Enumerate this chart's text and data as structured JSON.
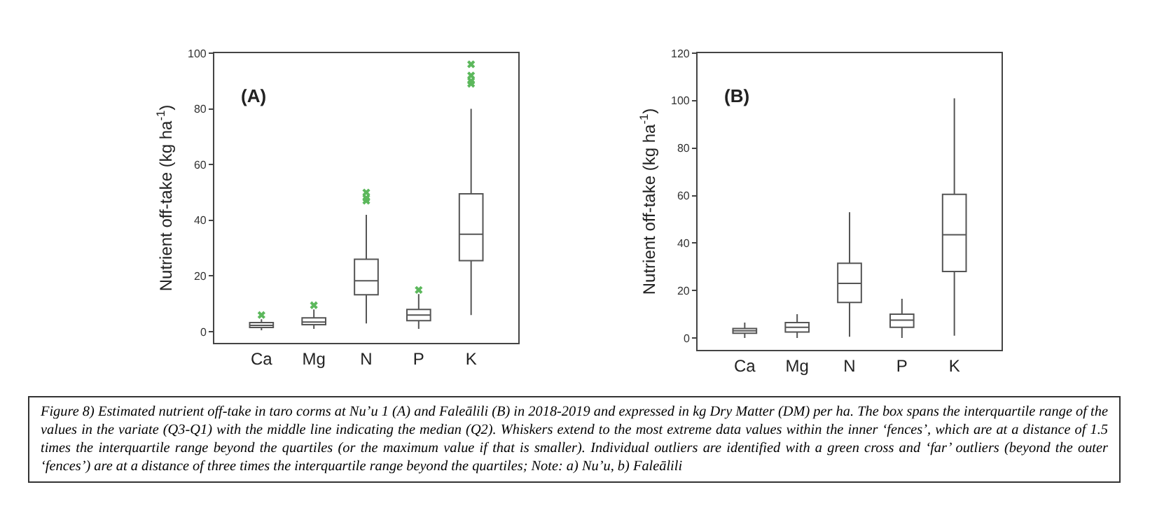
{
  "chart_data": [
    {
      "type": "box",
      "ylabel": "Nutrient off-take (kg ha$^{-1}$)",
      "annotations": [
        "(A)"
      ],
      "categories": [
        "Ca",
        "Mg",
        "N",
        "P",
        "K"
      ],
      "ylim": [
        -4,
        100
      ],
      "yticks": [
        0,
        20,
        40,
        60,
        80,
        100
      ],
      "grid": false,
      "color": "#555555",
      "marker": "cross",
      "series": [
        {
          "type": "scatter",
          "color": "#5cb85c",
          "x": [
            "Ca",
            "Mg",
            "N",
            "N",
            "N",
            "P",
            "K",
            "K",
            "K",
            "K"
          ],
          "values": [
            6,
            9.5,
            47,
            48,
            50,
            15,
            89,
            90,
            92,
            96
          ]
        }
      ],
      "boxes": [
        {
          "low": 0.5,
          "q1": 1.5,
          "median": 2.3,
          "q3": 3.3,
          "high": 4.5
        },
        {
          "low": 1,
          "q1": 2.5,
          "median": 3.5,
          "q3": 5,
          "high": 8
        },
        {
          "low": 3,
          "q1": 13.3,
          "median": 18.3,
          "q3": 26,
          "high": 42
        },
        {
          "low": 1,
          "q1": 4,
          "median": 6,
          "q3": 8,
          "high": 13.5
        },
        {
          "low": 6,
          "q1": 25.5,
          "median": 35,
          "q3": 49.5,
          "high": 80
        }
      ]
    },
    {
      "type": "box",
      "ylabel": "Nutrient off-take (kg ha$^{-1}$)",
      "annotations": [
        "(B)"
      ],
      "categories": [
        "Ca",
        "Mg",
        "N",
        "P",
        "K"
      ],
      "ylim": [
        -5,
        120
      ],
      "yticks": [
        0,
        20,
        40,
        60,
        80,
        100,
        120
      ],
      "grid": false,
      "color": "#555555",
      "boxes": [
        {
          "low": 0,
          "q1": 2,
          "median": 3,
          "q3": 4,
          "high": 6.5
        },
        {
          "low": 0,
          "q1": 2.5,
          "median": 4.5,
          "q3": 6.5,
          "high": 10
        },
        {
          "low": 0.5,
          "q1": 15,
          "median": 23,
          "q3": 31.5,
          "high": 53
        },
        {
          "low": 0,
          "q1": 4.5,
          "median": 7.5,
          "q3": 10,
          "high": 16.5
        },
        {
          "low": 1,
          "q1": 28,
          "median": 43.5,
          "q3": 60.5,
          "high": 101
        }
      ]
    },
    {
      "type": "other",
      "annotations": [
        "Figure 8) Estimated nutrient off-take in taro corms at Nu’u 1 (A) and Faleālili (B) in 2018-2019 and expressed in kg Dry Matter (DM) per ha. The box spans the interquartile range of the values in the variate (Q3-Q1) with the middle line indicating the median (Q2). Whiskers extend to the most extreme data values within the inner ‘fences’, which are at a distance of 1.5 times the interquartile range beyond the quartiles (or the maximum value if that is smaller). Individual outliers are identified with a green cross and ‘far’ outliers (beyond the outer ‘fences’) are at a distance of three times the interquartile range beyond the quartiles; Note: a) Nu’u, b) Faleālili"
      ]
    }
  ]
}
